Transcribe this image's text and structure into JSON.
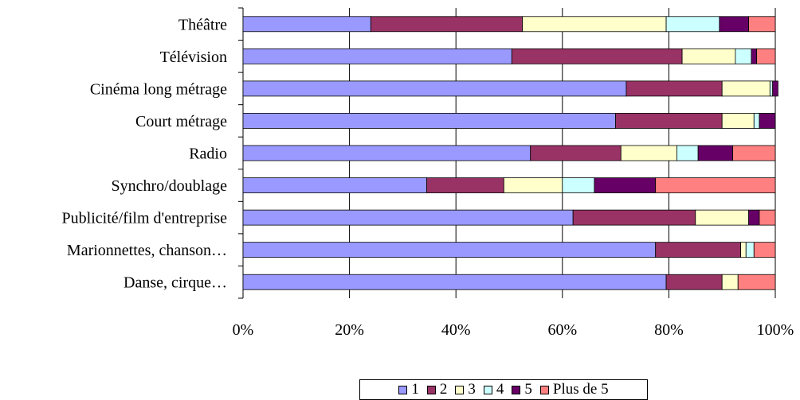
{
  "chart_data": {
    "type": "bar",
    "orientation": "horizontal",
    "stacked": "percent",
    "categories": [
      "Théâtre",
      "Télévision",
      "Cinéma long métrage",
      "Court métrage",
      "Radio",
      "Synchro/doublage",
      "Publicité/film d'entreprise",
      "Marionnettes, chanson…",
      "Danse, cirque…"
    ],
    "series": [
      {
        "name": "1",
        "color": "#9999ff",
        "values": [
          24,
          50.5,
          72,
          70,
          54,
          34.5,
          62,
          77.5,
          79.5
        ]
      },
      {
        "name": "2",
        "color": "#993366",
        "values": [
          28.5,
          32,
          18,
          20,
          17,
          14.5,
          23,
          16,
          10.5
        ]
      },
      {
        "name": "3",
        "color": "#ffffcc",
        "values": [
          27,
          10,
          9,
          6,
          10.5,
          11,
          10,
          1,
          3
        ]
      },
      {
        "name": "4",
        "color": "#ccffff",
        "values": [
          10,
          3,
          0.5,
          1,
          4,
          6,
          0,
          1.5,
          0
        ]
      },
      {
        "name": "5",
        "color": "#660066",
        "values": [
          5.5,
          1,
          1,
          3,
          6.5,
          11.5,
          2,
          0,
          0
        ]
      },
      {
        "name": "Plus de 5",
        "color": "#ff8080",
        "values": [
          5,
          3.5,
          0,
          0,
          8,
          22.5,
          3,
          4,
          7
        ]
      }
    ],
    "x_ticks": [
      "0%",
      "20%",
      "40%",
      "60%",
      "80%",
      "100%"
    ],
    "xlim": [
      0,
      100
    ],
    "grid": true,
    "legend_position": "bottom"
  }
}
